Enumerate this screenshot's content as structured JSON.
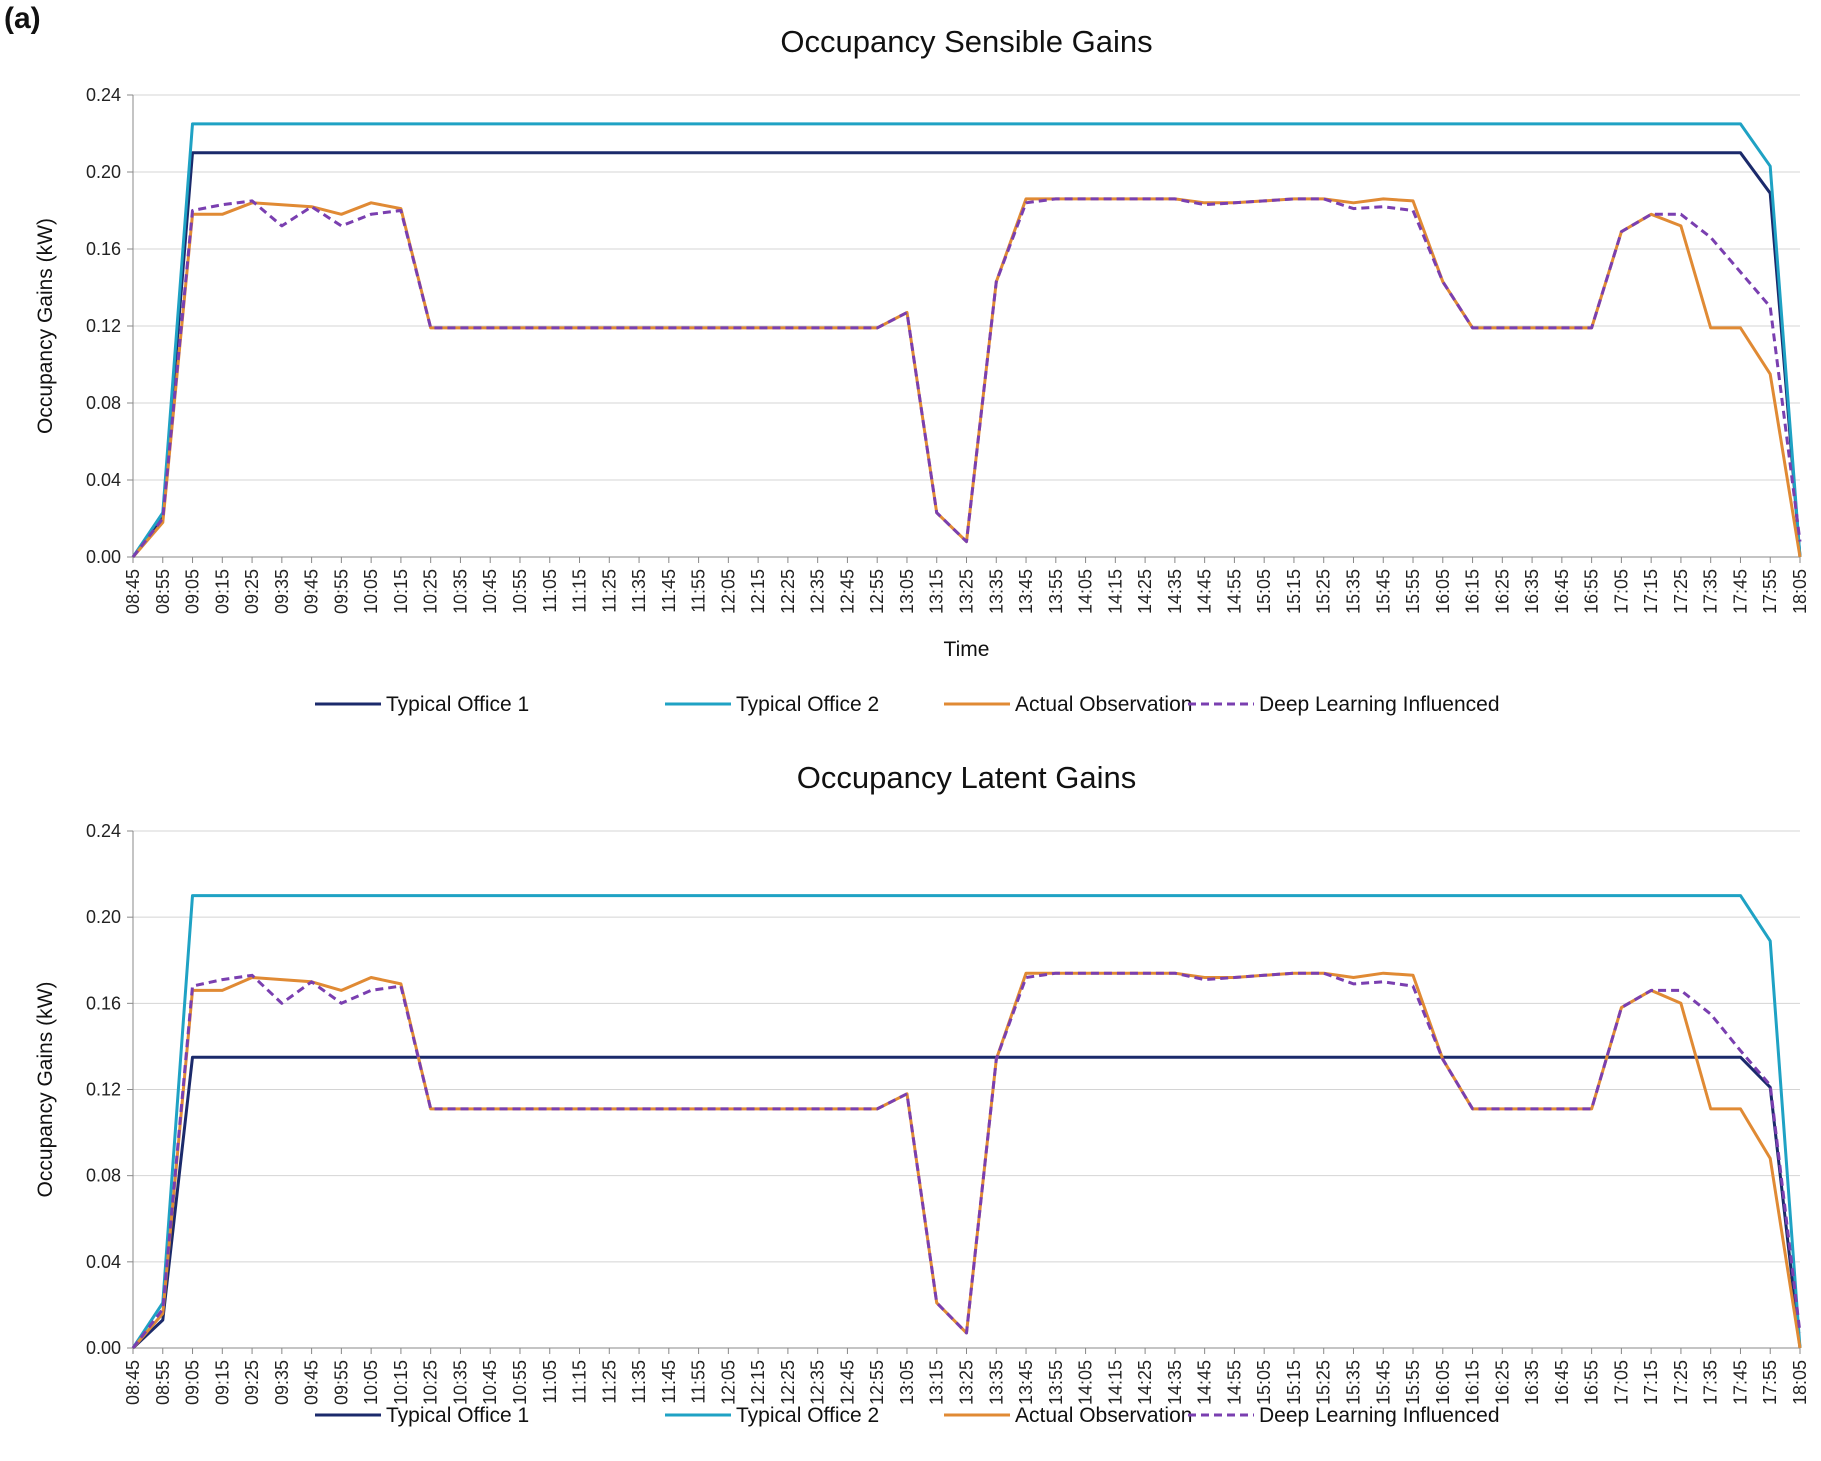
{
  "panel_label": "(a)",
  "chart_data": [
    {
      "type": "line",
      "title": "Occupancy Sensible Gains",
      "xlabel": "Time",
      "ylabel": "Occupancy Gains (kW)",
      "ylim": [
        0,
        0.24
      ],
      "yticks": [
        "0.00",
        "0.04",
        "0.08",
        "0.12",
        "0.16",
        "0.20",
        "0.24"
      ],
      "grid": true,
      "legend": "bottom",
      "x": [
        "08:45",
        "08:55",
        "09:05",
        "09:15",
        "09:25",
        "09:35",
        "09:45",
        "09:55",
        "10:05",
        "10:15",
        "10:25",
        "10:35",
        "10:45",
        "10:55",
        "11:05",
        "11:15",
        "11:25",
        "11:35",
        "11:45",
        "11:55",
        "12:05",
        "12:15",
        "12:25",
        "12:35",
        "12:45",
        "12:55",
        "13:05",
        "13:15",
        "13:25",
        "13:35",
        "13:45",
        "13:55",
        "14:05",
        "14:15",
        "14:25",
        "14:35",
        "14:45",
        "14:55",
        "15:05",
        "15:15",
        "15:25",
        "15:35",
        "15:45",
        "15:55",
        "16:05",
        "16:15",
        "16:25",
        "16:35",
        "16:45",
        "16:55",
        "17:05",
        "17:15",
        "17:25",
        "17:35",
        "17:45",
        "17:55",
        "18:05"
      ],
      "series": [
        {
          "name": "Typical Office 1",
          "color": "#1b2a6b",
          "dash": false,
          "values": [
            0,
            0.021,
            0.21,
            0.21,
            0.21,
            0.21,
            0.21,
            0.21,
            0.21,
            0.21,
            0.21,
            0.21,
            0.21,
            0.21,
            0.21,
            0.21,
            0.21,
            0.21,
            0.21,
            0.21,
            0.21,
            0.21,
            0.21,
            0.21,
            0.21,
            0.21,
            0.21,
            0.21,
            0.21,
            0.21,
            0.21,
            0.21,
            0.21,
            0.21,
            0.21,
            0.21,
            0.21,
            0.21,
            0.21,
            0.21,
            0.21,
            0.21,
            0.21,
            0.21,
            0.21,
            0.21,
            0.21,
            0.21,
            0.21,
            0.21,
            0.21,
            0.21,
            0.21,
            0.21,
            0.21,
            0.189,
            0
          ]
        },
        {
          "name": "Typical Office 2",
          "color": "#1fa2c4",
          "dash": false,
          "values": [
            0,
            0.023,
            0.225,
            0.225,
            0.225,
            0.225,
            0.225,
            0.225,
            0.225,
            0.225,
            0.225,
            0.225,
            0.225,
            0.225,
            0.225,
            0.225,
            0.225,
            0.225,
            0.225,
            0.225,
            0.225,
            0.225,
            0.225,
            0.225,
            0.225,
            0.225,
            0.225,
            0.225,
            0.225,
            0.225,
            0.225,
            0.225,
            0.225,
            0.225,
            0.225,
            0.225,
            0.225,
            0.225,
            0.225,
            0.225,
            0.225,
            0.225,
            0.225,
            0.225,
            0.225,
            0.225,
            0.225,
            0.225,
            0.225,
            0.225,
            0.225,
            0.225,
            0.225,
            0.225,
            0.225,
            0.203,
            0
          ]
        },
        {
          "name": "Actual Observation",
          "color": "#e08a34",
          "dash": false,
          "values": [
            0,
            0.018,
            0.178,
            0.178,
            0.184,
            0.183,
            0.182,
            0.178,
            0.184,
            0.181,
            0.119,
            0.119,
            0.119,
            0.119,
            0.119,
            0.119,
            0.119,
            0.119,
            0.119,
            0.119,
            0.119,
            0.119,
            0.119,
            0.119,
            0.119,
            0.119,
            0.127,
            0.023,
            0.008,
            0.143,
            0.186,
            0.186,
            0.186,
            0.186,
            0.186,
            0.186,
            0.184,
            0.184,
            0.185,
            0.186,
            0.186,
            0.184,
            0.186,
            0.185,
            0.143,
            0.119,
            0.119,
            0.119,
            0.119,
            0.119,
            0.169,
            0.178,
            0.172,
            0.119,
            0.119,
            0.095,
            0
          ]
        },
        {
          "name": "Deep Learning Influenced",
          "color": "#7a3fb0",
          "dash": true,
          "values": [
            0,
            0.02,
            0.18,
            0.183,
            0.185,
            0.172,
            0.182,
            0.172,
            0.178,
            0.18,
            0.119,
            0.119,
            0.119,
            0.119,
            0.119,
            0.119,
            0.119,
            0.119,
            0.119,
            0.119,
            0.119,
            0.119,
            0.119,
            0.119,
            0.119,
            0.119,
            0.127,
            0.023,
            0.008,
            0.143,
            0.184,
            0.186,
            0.186,
            0.186,
            0.186,
            0.186,
            0.183,
            0.184,
            0.185,
            0.186,
            0.186,
            0.181,
            0.182,
            0.18,
            0.143,
            0.119,
            0.119,
            0.119,
            0.119,
            0.119,
            0.169,
            0.178,
            0.178,
            0.166,
            0.148,
            0.13,
            0.008
          ]
        }
      ]
    },
    {
      "type": "line",
      "title": "Occupancy Latent Gains",
      "xlabel": "",
      "ylabel": "Occupancy Gains (kW)",
      "ylim": [
        0,
        0.24
      ],
      "yticks": [
        "0.00",
        "0.04",
        "0.08",
        "0.12",
        "0.16",
        "0.20",
        "0.24"
      ],
      "grid": true,
      "legend": "bottom",
      "x": [
        "08:45",
        "08:55",
        "09:05",
        "09:15",
        "09:25",
        "09:35",
        "09:45",
        "09:55",
        "10:05",
        "10:15",
        "10:25",
        "10:35",
        "10:45",
        "10:55",
        "11:05",
        "11:15",
        "11:25",
        "11:35",
        "11:45",
        "11:55",
        "12:05",
        "12:15",
        "12:25",
        "12:35",
        "12:45",
        "12:55",
        "13:05",
        "13:15",
        "13:25",
        "13:35",
        "13:45",
        "13:55",
        "14:05",
        "14:15",
        "14:25",
        "14:35",
        "14:45",
        "14:55",
        "15:05",
        "15:15",
        "15:25",
        "15:35",
        "15:45",
        "15:55",
        "16:05",
        "16:15",
        "16:25",
        "16:35",
        "16:45",
        "16:55",
        "17:05",
        "17:15",
        "17:25",
        "17:35",
        "17:45",
        "17:55",
        "18:05"
      ],
      "series": [
        {
          "name": "Typical Office 1",
          "color": "#1b2a6b",
          "dash": false,
          "values": [
            0,
            0.013,
            0.135,
            0.135,
            0.135,
            0.135,
            0.135,
            0.135,
            0.135,
            0.135,
            0.135,
            0.135,
            0.135,
            0.135,
            0.135,
            0.135,
            0.135,
            0.135,
            0.135,
            0.135,
            0.135,
            0.135,
            0.135,
            0.135,
            0.135,
            0.135,
            0.135,
            0.135,
            0.135,
            0.135,
            0.135,
            0.135,
            0.135,
            0.135,
            0.135,
            0.135,
            0.135,
            0.135,
            0.135,
            0.135,
            0.135,
            0.135,
            0.135,
            0.135,
            0.135,
            0.135,
            0.135,
            0.135,
            0.135,
            0.135,
            0.135,
            0.135,
            0.135,
            0.135,
            0.135,
            0.121,
            0
          ]
        },
        {
          "name": "Typical Office 2",
          "color": "#1fa2c4",
          "dash": false,
          "values": [
            0,
            0.021,
            0.21,
            0.21,
            0.21,
            0.21,
            0.21,
            0.21,
            0.21,
            0.21,
            0.21,
            0.21,
            0.21,
            0.21,
            0.21,
            0.21,
            0.21,
            0.21,
            0.21,
            0.21,
            0.21,
            0.21,
            0.21,
            0.21,
            0.21,
            0.21,
            0.21,
            0.21,
            0.21,
            0.21,
            0.21,
            0.21,
            0.21,
            0.21,
            0.21,
            0.21,
            0.21,
            0.21,
            0.21,
            0.21,
            0.21,
            0.21,
            0.21,
            0.21,
            0.21,
            0.21,
            0.21,
            0.21,
            0.21,
            0.21,
            0.21,
            0.21,
            0.21,
            0.21,
            0.21,
            0.189,
            0
          ]
        },
        {
          "name": "Actual Observation",
          "color": "#e08a34",
          "dash": false,
          "values": [
            0,
            0.016,
            0.166,
            0.166,
            0.172,
            0.171,
            0.17,
            0.166,
            0.172,
            0.169,
            0.111,
            0.111,
            0.111,
            0.111,
            0.111,
            0.111,
            0.111,
            0.111,
            0.111,
            0.111,
            0.111,
            0.111,
            0.111,
            0.111,
            0.111,
            0.111,
            0.118,
            0.021,
            0.007,
            0.134,
            0.174,
            0.174,
            0.174,
            0.174,
            0.174,
            0.174,
            0.172,
            0.172,
            0.173,
            0.174,
            0.174,
            0.172,
            0.174,
            0.173,
            0.134,
            0.111,
            0.111,
            0.111,
            0.111,
            0.111,
            0.158,
            0.166,
            0.16,
            0.111,
            0.111,
            0.088,
            0
          ]
        },
        {
          "name": "Deep Learning Influenced",
          "color": "#7a3fb0",
          "dash": true,
          "values": [
            0,
            0.018,
            0.168,
            0.171,
            0.173,
            0.16,
            0.17,
            0.16,
            0.166,
            0.168,
            0.111,
            0.111,
            0.111,
            0.111,
            0.111,
            0.111,
            0.111,
            0.111,
            0.111,
            0.111,
            0.111,
            0.111,
            0.111,
            0.111,
            0.111,
            0.111,
            0.118,
            0.021,
            0.007,
            0.134,
            0.172,
            0.174,
            0.174,
            0.174,
            0.174,
            0.174,
            0.171,
            0.172,
            0.173,
            0.174,
            0.174,
            0.169,
            0.17,
            0.168,
            0.134,
            0.111,
            0.111,
            0.111,
            0.111,
            0.111,
            0.158,
            0.166,
            0.166,
            0.155,
            0.138,
            0.122,
            0.007
          ]
        }
      ]
    }
  ]
}
